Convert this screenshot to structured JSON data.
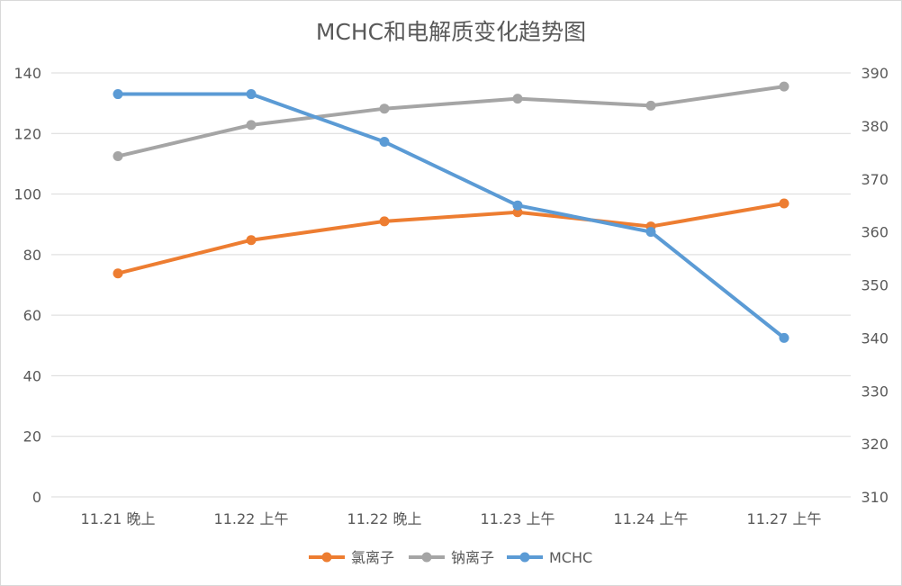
{
  "chart_data": {
    "type": "line",
    "title": "MCHC和电解质变化趋势图",
    "categories": [
      "11.21 晚上",
      "11.22 上午",
      "11.22 晚上",
      "11.23 上午",
      "11.24 上午",
      "11.27 上午"
    ],
    "y_left": {
      "min": 0,
      "max": 140,
      "step": 20,
      "ticks": [
        "0",
        "20",
        "40",
        "60",
        "80",
        "100",
        "120",
        "140"
      ]
    },
    "y_right": {
      "min": 310,
      "max": 390,
      "step": 10,
      "ticks": [
        "310",
        "320",
        "330",
        "340",
        "350",
        "360",
        "370",
        "380",
        "390"
      ]
    },
    "grid": true,
    "legend_position": "bottom",
    "series": [
      {
        "name": "氯离子",
        "axis": "left",
        "color": "#ed7d31",
        "values": [
          73.8,
          84.8,
          91.0,
          94.0,
          89.3,
          96.9
        ]
      },
      {
        "name": "钠离子",
        "axis": "left",
        "color": "#a5a5a5",
        "values": [
          112.5,
          122.8,
          128.2,
          131.5,
          129.2,
          135.5
        ]
      },
      {
        "name": "MCHC",
        "axis": "right",
        "color": "#5b9bd5",
        "values": [
          386,
          386,
          377,
          365,
          360,
          340
        ]
      }
    ]
  }
}
